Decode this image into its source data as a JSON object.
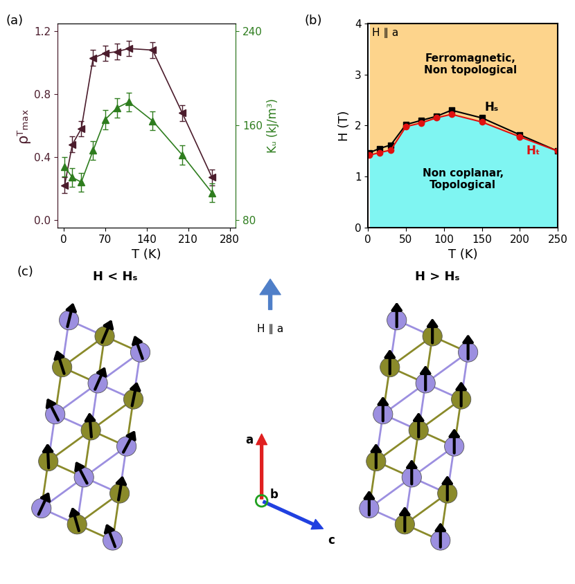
{
  "chart_data": [
    {
      "type": "line",
      "panel_label": "(a)",
      "xlabel": "T (K)",
      "ylabel": "ρᵀₘₐₓ",
      "y2label": "Kᵤ (kJ/m³)",
      "x": [
        2,
        15,
        30,
        50,
        70,
        90,
        110,
        150,
        200,
        250
      ],
      "xlim": [
        -10,
        290
      ],
      "xticks": [
        0,
        70,
        140,
        210,
        280
      ],
      "ylim": [
        -0.05,
        1.25
      ],
      "yticks": [
        {
          "value": 0.0,
          "label": "0.0"
        },
        {
          "value": 0.4,
          "label": "0.4"
        },
        {
          "value": 0.8,
          "label": "0.8"
        },
        {
          "value": 1.2,
          "label": "1.2"
        }
      ],
      "y2lim": [
        73.3,
        246.7
      ],
      "y2ticks": [
        80,
        160,
        240
      ],
      "series": [
        {
          "color": "#4b1c2c",
          "marker": "triangle_left",
          "line_style": "solid",
          "values": [
            0.22,
            0.48,
            0.58,
            1.03,
            1.06,
            1.07,
            1.09,
            1.08,
            0.68,
            0.27
          ],
          "errors": [
            0.05,
            0.05,
            0.05,
            0.05,
            0.05,
            0.05,
            0.05,
            0.05,
            0.05,
            0.05
          ]
        },
        {
          "color": "#2e7d1e",
          "marker": "triangle_up",
          "line_style": "solid",
          "axis": "y2",
          "values": [
            125,
            116,
            112,
            139,
            165,
            175,
            180,
            164,
            135,
            103
          ],
          "errors": [
            8,
            8,
            8,
            8,
            8,
            8,
            8,
            8,
            8,
            8
          ]
        }
      ]
    },
    {
      "type": "line",
      "panel_label": "(b)",
      "xlabel": "T (K)",
      "ylabel": "H (T)",
      "x": [
        2,
        15,
        30,
        50,
        70,
        90,
        110,
        150,
        200,
        250
      ],
      "xlim": [
        0,
        250
      ],
      "xticks": [
        0,
        50,
        100,
        150,
        200,
        250
      ],
      "ylim": [
        0,
        4
      ],
      "yticks": [
        0,
        1,
        2,
        3,
        4
      ],
      "annotations": [
        "H ∥ a",
        "Ferromagnetic,\nNon topological",
        "Non coplanar,\nTopological"
      ],
      "series": [
        {
          "label": "Hₛ",
          "color": "#000000",
          "marker": "square",
          "line_style": "solid",
          "values": [
            1.47,
            1.55,
            1.62,
            2.02,
            2.1,
            2.18,
            2.3,
            2.15,
            1.82,
            1.5
          ]
        },
        {
          "label": "Hₜ",
          "color": "#e01010",
          "marker": "circle",
          "line_style": "solid",
          "values": [
            1.42,
            1.47,
            1.52,
            1.98,
            2.05,
            2.15,
            2.22,
            2.07,
            1.78,
            1.5
          ]
        }
      ]
    }
  ],
  "diagram": {
    "panel_label": "(c)",
    "left_title": "H < Hₛ",
    "right_title": "H > Hₛ",
    "field_label": "H ∥ a",
    "axis_labels": [
      "a",
      "b",
      "c"
    ]
  }
}
